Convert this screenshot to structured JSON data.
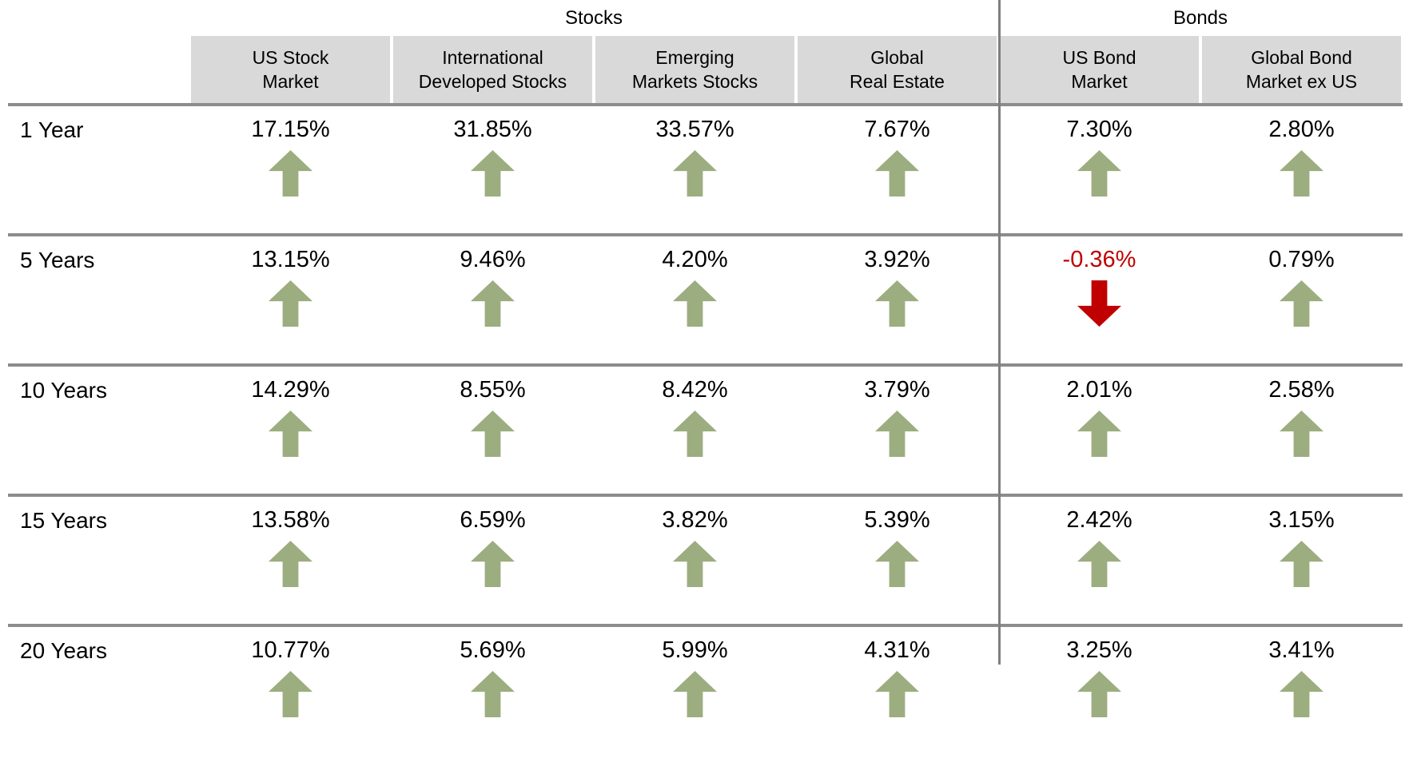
{
  "colors": {
    "positive": "#9CAD7F",
    "negative": "#C00000",
    "header_bg": "#D9D9D9",
    "rule": "#8C8C8C",
    "divider": "#7F7F7F"
  },
  "groups": [
    {
      "label": "Stocks",
      "columns": 4
    },
    {
      "label": "Bonds",
      "columns": 2
    }
  ],
  "columns": [
    {
      "label": "US Stock\nMarket"
    },
    {
      "label": "International\nDeveloped Stocks"
    },
    {
      "label": "Emerging\nMarkets Stocks"
    },
    {
      "label": "Global\nReal Estate"
    },
    {
      "label": "US Bond\nMarket"
    },
    {
      "label": "Global Bond\nMarket ex US"
    }
  ],
  "rows": [
    {
      "period": "1 Year",
      "cells": [
        {
          "value": "17.15%",
          "direction": "up"
        },
        {
          "value": "31.85%",
          "direction": "up"
        },
        {
          "value": "33.57%",
          "direction": "up"
        },
        {
          "value": "7.67%",
          "direction": "up"
        },
        {
          "value": "7.30%",
          "direction": "up"
        },
        {
          "value": "2.80%",
          "direction": "up"
        }
      ]
    },
    {
      "period": "5 Years",
      "cells": [
        {
          "value": "13.15%",
          "direction": "up"
        },
        {
          "value": "9.46%",
          "direction": "up"
        },
        {
          "value": "4.20%",
          "direction": "up"
        },
        {
          "value": "3.92%",
          "direction": "up"
        },
        {
          "value": "-0.36%",
          "direction": "down"
        },
        {
          "value": "0.79%",
          "direction": "up"
        }
      ]
    },
    {
      "period": "10 Years",
      "cells": [
        {
          "value": "14.29%",
          "direction": "up"
        },
        {
          "value": "8.55%",
          "direction": "up"
        },
        {
          "value": "8.42%",
          "direction": "up"
        },
        {
          "value": "3.79%",
          "direction": "up"
        },
        {
          "value": "2.01%",
          "direction": "up"
        },
        {
          "value": "2.58%",
          "direction": "up"
        }
      ]
    },
    {
      "period": "15 Years",
      "cells": [
        {
          "value": "13.58%",
          "direction": "up"
        },
        {
          "value": "6.59%",
          "direction": "up"
        },
        {
          "value": "3.82%",
          "direction": "up"
        },
        {
          "value": "5.39%",
          "direction": "up"
        },
        {
          "value": "2.42%",
          "direction": "up"
        },
        {
          "value": "3.15%",
          "direction": "up"
        }
      ]
    },
    {
      "period": "20 Years",
      "cells": [
        {
          "value": "10.77%",
          "direction": "up"
        },
        {
          "value": "5.69%",
          "direction": "up"
        },
        {
          "value": "5.99%",
          "direction": "up"
        },
        {
          "value": "4.31%",
          "direction": "up"
        },
        {
          "value": "3.25%",
          "direction": "up"
        },
        {
          "value": "3.41%",
          "direction": "up"
        }
      ]
    }
  ],
  "chart_data": {
    "type": "table",
    "title": "",
    "column_groups": [
      {
        "label": "Stocks",
        "columns": 4
      },
      {
        "label": "Bonds",
        "columns": 2
      }
    ],
    "columns": [
      "US Stock Market",
      "International Developed Stocks",
      "Emerging Markets Stocks",
      "Global Real Estate",
      "US Bond Market",
      "Global Bond Market ex US"
    ],
    "rows": [
      "1 Year",
      "5 Years",
      "10 Years",
      "15 Years",
      "20 Years"
    ],
    "values_pct": [
      [
        17.15,
        31.85,
        33.57,
        7.67,
        7.3,
        2.8
      ],
      [
        13.15,
        9.46,
        4.2,
        3.92,
        -0.36,
        0.79
      ],
      [
        14.29,
        8.55,
        8.42,
        3.79,
        2.01,
        2.58
      ],
      [
        13.58,
        6.59,
        3.82,
        5.39,
        2.42,
        3.15
      ],
      [
        10.77,
        5.69,
        5.99,
        4.31,
        3.25,
        3.41
      ]
    ],
    "negative_cells": [
      {
        "row": "5 Years",
        "column": "US Bond Market",
        "value": -0.36
      }
    ],
    "legend": "green up arrow = positive return, red down arrow = negative return"
  }
}
